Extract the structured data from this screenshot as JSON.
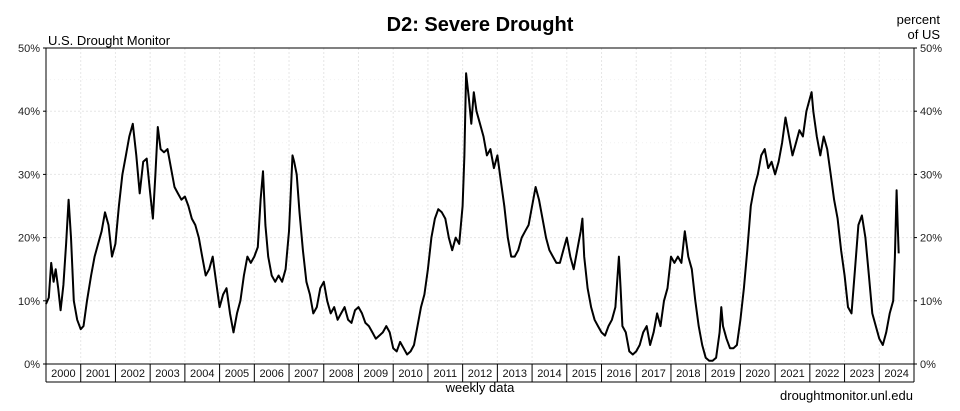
{
  "chart_data": {
    "type": "line",
    "title": "D2: Severe Drought",
    "source_label": "U.S. Drought Monitor",
    "right_axis_label_line1": "percent",
    "right_axis_label_line2": "of US",
    "xlabel": "weekly data",
    "credit": "droughtmonitor.unl.edu",
    "ylim": [
      0,
      50
    ],
    "xlim": [
      2000.0,
      2025.0
    ],
    "y_ticks": [
      0,
      10,
      20,
      30,
      40,
      50
    ],
    "y_tick_labels": [
      "0%",
      "10%",
      "20%",
      "30%",
      "40%",
      "50%"
    ],
    "x_tick_labels": [
      "2000",
      "2001",
      "2002",
      "2003",
      "2004",
      "2005",
      "2006",
      "2007",
      "2008",
      "2009",
      "2010",
      "2011",
      "2012",
      "2013",
      "2014",
      "2015",
      "2016",
      "2017",
      "2018",
      "2019",
      "2020",
      "2021",
      "2022",
      "2023",
      "2024"
    ],
    "grid": true,
    "line_color": "#000000",
    "series": [
      {
        "values": [
          [
            2000.0,
            9.5
          ],
          [
            2000.08,
            10.5
          ],
          [
            2000.15,
            16.0
          ],
          [
            2000.22,
            13.0
          ],
          [
            2000.28,
            15.0
          ],
          [
            2000.35,
            12.0
          ],
          [
            2000.42,
            8.5
          ],
          [
            2000.5,
            12.5
          ],
          [
            2000.58,
            19.0
          ],
          [
            2000.65,
            26.0
          ],
          [
            2000.72,
            20.0
          ],
          [
            2000.8,
            10.0
          ],
          [
            2000.9,
            7.0
          ],
          [
            2001.0,
            5.5
          ],
          [
            2001.08,
            6.0
          ],
          [
            2001.18,
            10.0
          ],
          [
            2001.3,
            14.0
          ],
          [
            2001.4,
            17.0
          ],
          [
            2001.5,
            19.0
          ],
          [
            2001.6,
            21.0
          ],
          [
            2001.7,
            24.0
          ],
          [
            2001.8,
            22.0
          ],
          [
            2001.9,
            17.0
          ],
          [
            2002.0,
            19.0
          ],
          [
            2002.1,
            25.0
          ],
          [
            2002.2,
            30.0
          ],
          [
            2002.3,
            33.0
          ],
          [
            2002.4,
            36.0
          ],
          [
            2002.5,
            38.0
          ],
          [
            2002.6,
            33.0
          ],
          [
            2002.7,
            27.0
          ],
          [
            2002.8,
            32.0
          ],
          [
            2002.9,
            32.5
          ],
          [
            2003.0,
            27.0
          ],
          [
            2003.08,
            23.0
          ],
          [
            2003.15,
            30.0
          ],
          [
            2003.22,
            37.5
          ],
          [
            2003.3,
            34.0
          ],
          [
            2003.4,
            33.5
          ],
          [
            2003.5,
            34.0
          ],
          [
            2003.6,
            31.0
          ],
          [
            2003.7,
            28.0
          ],
          [
            2003.8,
            27.0
          ],
          [
            2003.9,
            26.0
          ],
          [
            2004.0,
            26.5
          ],
          [
            2004.1,
            25.0
          ],
          [
            2004.2,
            23.0
          ],
          [
            2004.3,
            22.0
          ],
          [
            2004.4,
            20.0
          ],
          [
            2004.5,
            17.0
          ],
          [
            2004.6,
            14.0
          ],
          [
            2004.7,
            15.0
          ],
          [
            2004.8,
            17.0
          ],
          [
            2004.9,
            13.0
          ],
          [
            2005.0,
            9.0
          ],
          [
            2005.1,
            11.0
          ],
          [
            2005.2,
            12.0
          ],
          [
            2005.3,
            8.0
          ],
          [
            2005.4,
            5.0
          ],
          [
            2005.5,
            8.0
          ],
          [
            2005.6,
            10.0
          ],
          [
            2005.7,
            14.0
          ],
          [
            2005.8,
            17.0
          ],
          [
            2005.9,
            16.0
          ],
          [
            2006.0,
            17.0
          ],
          [
            2006.1,
            18.5
          ],
          [
            2006.18,
            26.0
          ],
          [
            2006.25,
            30.5
          ],
          [
            2006.32,
            22.0
          ],
          [
            2006.4,
            17.0
          ],
          [
            2006.5,
            14.0
          ],
          [
            2006.6,
            13.0
          ],
          [
            2006.7,
            14.0
          ],
          [
            2006.8,
            13.0
          ],
          [
            2006.9,
            15.0
          ],
          [
            2007.0,
            21.0
          ],
          [
            2007.1,
            33.0
          ],
          [
            2007.15,
            32.0
          ],
          [
            2007.22,
            30.0
          ],
          [
            2007.3,
            24.0
          ],
          [
            2007.4,
            18.0
          ],
          [
            2007.5,
            13.0
          ],
          [
            2007.6,
            11.0
          ],
          [
            2007.7,
            8.0
          ],
          [
            2007.8,
            9.0
          ],
          [
            2007.9,
            12.0
          ],
          [
            2008.0,
            13.0
          ],
          [
            2008.1,
            10.0
          ],
          [
            2008.2,
            8.0
          ],
          [
            2008.3,
            9.0
          ],
          [
            2008.4,
            7.0
          ],
          [
            2008.5,
            8.0
          ],
          [
            2008.6,
            9.0
          ],
          [
            2008.7,
            7.0
          ],
          [
            2008.8,
            6.5
          ],
          [
            2008.9,
            8.5
          ],
          [
            2009.0,
            9.0
          ],
          [
            2009.1,
            8.0
          ],
          [
            2009.2,
            6.5
          ],
          [
            2009.3,
            6.0
          ],
          [
            2009.4,
            5.0
          ],
          [
            2009.5,
            4.0
          ],
          [
            2009.6,
            4.5
          ],
          [
            2009.7,
            5.0
          ],
          [
            2009.8,
            6.0
          ],
          [
            2009.9,
            5.0
          ],
          [
            2010.0,
            2.5
          ],
          [
            2010.1,
            2.0
          ],
          [
            2010.2,
            3.5
          ],
          [
            2010.3,
            2.5
          ],
          [
            2010.4,
            1.5
          ],
          [
            2010.5,
            2.0
          ],
          [
            2010.6,
            3.0
          ],
          [
            2010.7,
            6.0
          ],
          [
            2010.8,
            9.0
          ],
          [
            2010.9,
            11.0
          ],
          [
            2011.0,
            15.0
          ],
          [
            2011.1,
            20.0
          ],
          [
            2011.2,
            23.0
          ],
          [
            2011.3,
            24.5
          ],
          [
            2011.4,
            24.0
          ],
          [
            2011.5,
            23.0
          ],
          [
            2011.6,
            20.0
          ],
          [
            2011.7,
            18.0
          ],
          [
            2011.8,
            20.0
          ],
          [
            2011.9,
            19.0
          ],
          [
            2012.0,
            25.0
          ],
          [
            2012.05,
            33.0
          ],
          [
            2012.1,
            46.0
          ],
          [
            2012.18,
            42.0
          ],
          [
            2012.25,
            38.0
          ],
          [
            2012.32,
            43.0
          ],
          [
            2012.4,
            40.0
          ],
          [
            2012.5,
            38.0
          ],
          [
            2012.6,
            36.0
          ],
          [
            2012.7,
            33.0
          ],
          [
            2012.8,
            34.0
          ],
          [
            2012.9,
            31.0
          ],
          [
            2013.0,
            33.0
          ],
          [
            2013.1,
            29.0
          ],
          [
            2013.2,
            25.0
          ],
          [
            2013.3,
            20.0
          ],
          [
            2013.4,
            17.0
          ],
          [
            2013.5,
            17.0
          ],
          [
            2013.6,
            18.0
          ],
          [
            2013.7,
            20.0
          ],
          [
            2013.8,
            21.0
          ],
          [
            2013.9,
            22.0
          ],
          [
            2014.0,
            25.0
          ],
          [
            2014.1,
            28.0
          ],
          [
            2014.2,
            26.0
          ],
          [
            2014.3,
            23.0
          ],
          [
            2014.4,
            20.0
          ],
          [
            2014.5,
            18.0
          ],
          [
            2014.6,
            17.0
          ],
          [
            2014.7,
            16.0
          ],
          [
            2014.8,
            16.0
          ],
          [
            2014.9,
            18.0
          ],
          [
            2015.0,
            20.0
          ],
          [
            2015.1,
            17.0
          ],
          [
            2015.2,
            15.0
          ],
          [
            2015.3,
            18.0
          ],
          [
            2015.4,
            21.0
          ],
          [
            2015.45,
            23.0
          ],
          [
            2015.5,
            17.0
          ],
          [
            2015.6,
            12.0
          ],
          [
            2015.7,
            9.0
          ],
          [
            2015.8,
            7.0
          ],
          [
            2015.9,
            6.0
          ],
          [
            2016.0,
            5.0
          ],
          [
            2016.1,
            4.5
          ],
          [
            2016.2,
            6.0
          ],
          [
            2016.3,
            7.0
          ],
          [
            2016.4,
            9.0
          ],
          [
            2016.5,
            17.0
          ],
          [
            2016.55,
            12.0
          ],
          [
            2016.6,
            6.0
          ],
          [
            2016.7,
            5.0
          ],
          [
            2016.8,
            2.0
          ],
          [
            2016.9,
            1.5
          ],
          [
            2017.0,
            2.0
          ],
          [
            2017.1,
            3.0
          ],
          [
            2017.2,
            5.0
          ],
          [
            2017.3,
            6.0
          ],
          [
            2017.4,
            3.0
          ],
          [
            2017.5,
            5.0
          ],
          [
            2017.6,
            8.0
          ],
          [
            2017.7,
            6.0
          ],
          [
            2017.8,
            10.0
          ],
          [
            2017.9,
            12.0
          ],
          [
            2018.0,
            17.0
          ],
          [
            2018.1,
            16.0
          ],
          [
            2018.2,
            17.0
          ],
          [
            2018.3,
            16.0
          ],
          [
            2018.4,
            21.0
          ],
          [
            2018.5,
            17.0
          ],
          [
            2018.6,
            15.0
          ],
          [
            2018.7,
            10.0
          ],
          [
            2018.8,
            6.0
          ],
          [
            2018.9,
            3.0
          ],
          [
            2019.0,
            1.0
          ],
          [
            2019.1,
            0.5
          ],
          [
            2019.2,
            0.5
          ],
          [
            2019.3,
            1.0
          ],
          [
            2019.4,
            5.0
          ],
          [
            2019.45,
            9.0
          ],
          [
            2019.5,
            6.0
          ],
          [
            2019.6,
            4.0
          ],
          [
            2019.7,
            2.5
          ],
          [
            2019.8,
            2.5
          ],
          [
            2019.9,
            3.0
          ],
          [
            2020.0,
            7.0
          ],
          [
            2020.1,
            12.0
          ],
          [
            2020.2,
            18.0
          ],
          [
            2020.3,
            25.0
          ],
          [
            2020.4,
            28.0
          ],
          [
            2020.5,
            30.0
          ],
          [
            2020.6,
            33.0
          ],
          [
            2020.7,
            34.0
          ],
          [
            2020.8,
            31.0
          ],
          [
            2020.9,
            32.0
          ],
          [
            2021.0,
            30.0
          ],
          [
            2021.1,
            32.0
          ],
          [
            2021.2,
            35.0
          ],
          [
            2021.3,
            39.0
          ],
          [
            2021.4,
            36.0
          ],
          [
            2021.5,
            33.0
          ],
          [
            2021.6,
            35.0
          ],
          [
            2021.7,
            37.0
          ],
          [
            2021.8,
            36.0
          ],
          [
            2021.9,
            40.0
          ],
          [
            2022.0,
            42.0
          ],
          [
            2022.05,
            43.0
          ],
          [
            2022.1,
            40.0
          ],
          [
            2022.2,
            36.0
          ],
          [
            2022.3,
            33.0
          ],
          [
            2022.4,
            36.0
          ],
          [
            2022.5,
            34.0
          ],
          [
            2022.6,
            30.0
          ],
          [
            2022.7,
            26.0
          ],
          [
            2022.8,
            23.0
          ],
          [
            2022.9,
            18.0
          ],
          [
            2023.0,
            14.0
          ],
          [
            2023.1,
            9.0
          ],
          [
            2023.2,
            8.0
          ],
          [
            2023.3,
            15.0
          ],
          [
            2023.4,
            22.0
          ],
          [
            2023.5,
            23.5
          ],
          [
            2023.6,
            20.0
          ],
          [
            2023.7,
            14.0
          ],
          [
            2023.8,
            8.0
          ],
          [
            2023.9,
            6.0
          ],
          [
            2024.0,
            4.0
          ],
          [
            2024.1,
            3.0
          ],
          [
            2024.2,
            5.0
          ],
          [
            2024.3,
            8.0
          ],
          [
            2024.4,
            10.0
          ],
          [
            2024.45,
            17.0
          ],
          [
            2024.5,
            27.5
          ],
          [
            2024.53,
            22.0
          ],
          [
            2024.56,
            17.5
          ]
        ]
      }
    ]
  }
}
